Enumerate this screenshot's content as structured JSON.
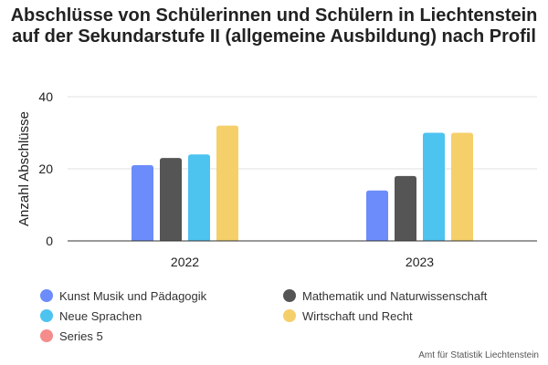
{
  "chart_data": {
    "type": "bar",
    "title": "Abschlüsse von Schülerinnen und Schülern in Liechtenstein auf der Sekundarstufe II (allgemeine Ausbildung) nach Profil",
    "xlabel": "",
    "ylabel": "Anzahl Abschlüsse",
    "categories": [
      "2022",
      "2023"
    ],
    "ylim": [
      0,
      40
    ],
    "yticks": [
      0,
      20,
      40
    ],
    "grid": true,
    "legend_position": "bottom",
    "series": [
      {
        "name": "Kunst Musik und Pädagogik",
        "color": "#6b8cfa",
        "values": [
          21,
          14
        ]
      },
      {
        "name": "Mathematik und Naturwissenschaft",
        "color": "#555555",
        "values": [
          23,
          18
        ]
      },
      {
        "name": "Neue Sprachen",
        "color": "#4dc3f0",
        "values": [
          24,
          30
        ]
      },
      {
        "name": "Wirtschaft und Recht",
        "color": "#f5cf6a",
        "values": [
          32,
          30
        ]
      },
      {
        "name": "Series 5",
        "color": "#f48c8c",
        "values": [
          null,
          null
        ]
      }
    ]
  },
  "source_note": "Amt für Statistik Liechtenstein"
}
